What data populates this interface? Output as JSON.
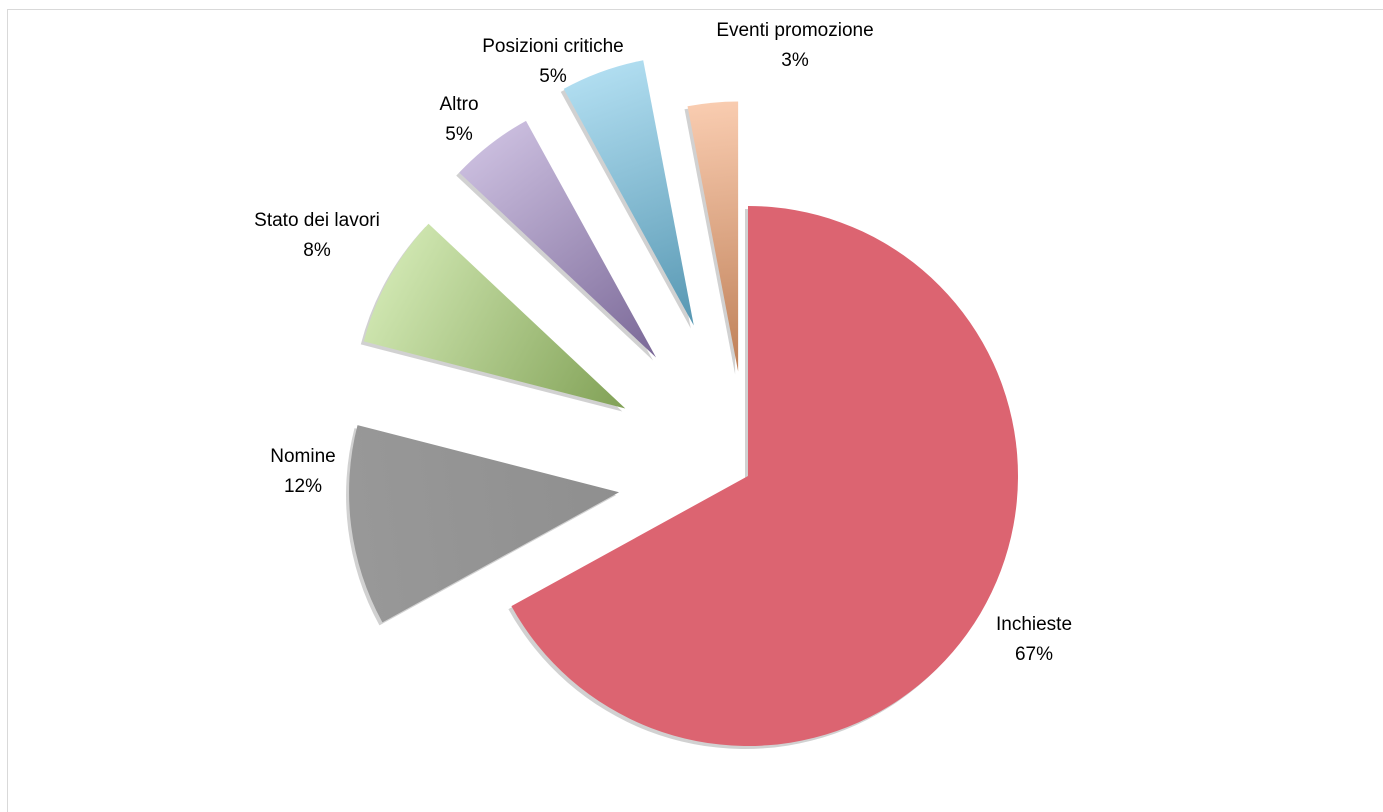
{
  "chart_data": {
    "type": "pie",
    "exploded": true,
    "slices": [
      {
        "name": "Inchieste",
        "percent_label": "67%",
        "value": 67,
        "color": "#dc6471"
      },
      {
        "name": "Nomine",
        "percent_label": "12%",
        "value": 12,
        "color": "#969696"
      },
      {
        "name": "Stato dei lavori",
        "percent_label": "8%",
        "value": 8,
        "color": "#a6cf6e"
      },
      {
        "name": "Altro",
        "percent_label": "5%",
        "value": 5,
        "color": "#9c85c2"
      },
      {
        "name": "Posizioni critiche",
        "percent_label": "5%",
        "value": 5,
        "color": "#6fc2e4"
      },
      {
        "name": "Eventi promozione",
        "percent_label": "3%",
        "value": 3,
        "color": "#f4a36f"
      }
    ]
  }
}
